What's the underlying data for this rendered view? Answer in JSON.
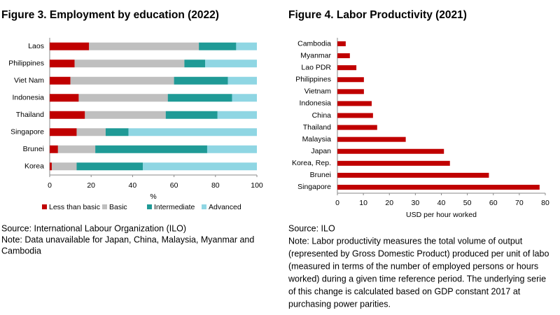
{
  "chart_data": [
    {
      "type": "bar",
      "orientation": "horizontal",
      "stacked": true,
      "title": "Figure 3. Employment by education (2022)",
      "categories": [
        "Laos",
        "Philippines",
        "Viet Nam",
        "Indonesia",
        "Thailand",
        "Singapore",
        "Brunei",
        "Korea"
      ],
      "series": [
        {
          "name": "Less than basic",
          "color": "#c00000",
          "values": [
            19,
            12,
            10,
            14,
            17,
            13,
            4,
            1
          ]
        },
        {
          "name": "Basic",
          "color": "#bfbfbf",
          "values": [
            53,
            53,
            50,
            43,
            39,
            14,
            18,
            12
          ]
        },
        {
          "name": "Intermediate",
          "color": "#1f9a96",
          "values": [
            18,
            10,
            26,
            31,
            25,
            11,
            54,
            32
          ]
        },
        {
          "name": "Advanced",
          "color": "#8fd6e3",
          "values": [
            10,
            25,
            14,
            12,
            19,
            62,
            24,
            55
          ]
        }
      ],
      "xlabel": "%",
      "xlim": [
        0,
        100
      ],
      "xticks": [
        0,
        20,
        40,
        60,
        80,
        100
      ],
      "legend": "bottom",
      "source": "Source: International Labour Organization (ILO)",
      "note": [
        "Note: Data unavailable for Japan, China, Malaysia, Myanmar and",
        "Cambodia"
      ]
    },
    {
      "type": "bar",
      "orientation": "horizontal",
      "title": "Figure 4. Labor Productivity (2021)",
      "categories": [
        "Cambodia",
        "Myanmar",
        "Lao PDR",
        "Philippines",
        "Vietnam",
        "Indonesia",
        "China",
        "Thailand",
        "Malaysia",
        "Japan",
        "Korea, Rep.",
        "Brunei",
        "Singapore"
      ],
      "values": [
        3.2,
        4.8,
        7.3,
        10.2,
        10.2,
        13.2,
        13.7,
        15.3,
        26.3,
        41,
        43.3,
        58.3,
        77.8
      ],
      "color": "#c00000",
      "xlabel": "USD per hour worked",
      "xlim": [
        0,
        80
      ],
      "xticks": [
        0,
        10,
        20,
        30,
        40,
        50,
        60,
        70,
        80
      ],
      "source": "Source: ILO",
      "note": [
        "Note: Labor productivity measures the total volume of output",
        "(represented by Gross Domestic Product) produced per unit of labo",
        "(measured in terms of the number of employed persons or hours",
        "worked) during a given time reference period. The underlying serie",
        "of this change is calculated based on GDP constant 2017 at",
        "purchasing power parities."
      ]
    }
  ]
}
